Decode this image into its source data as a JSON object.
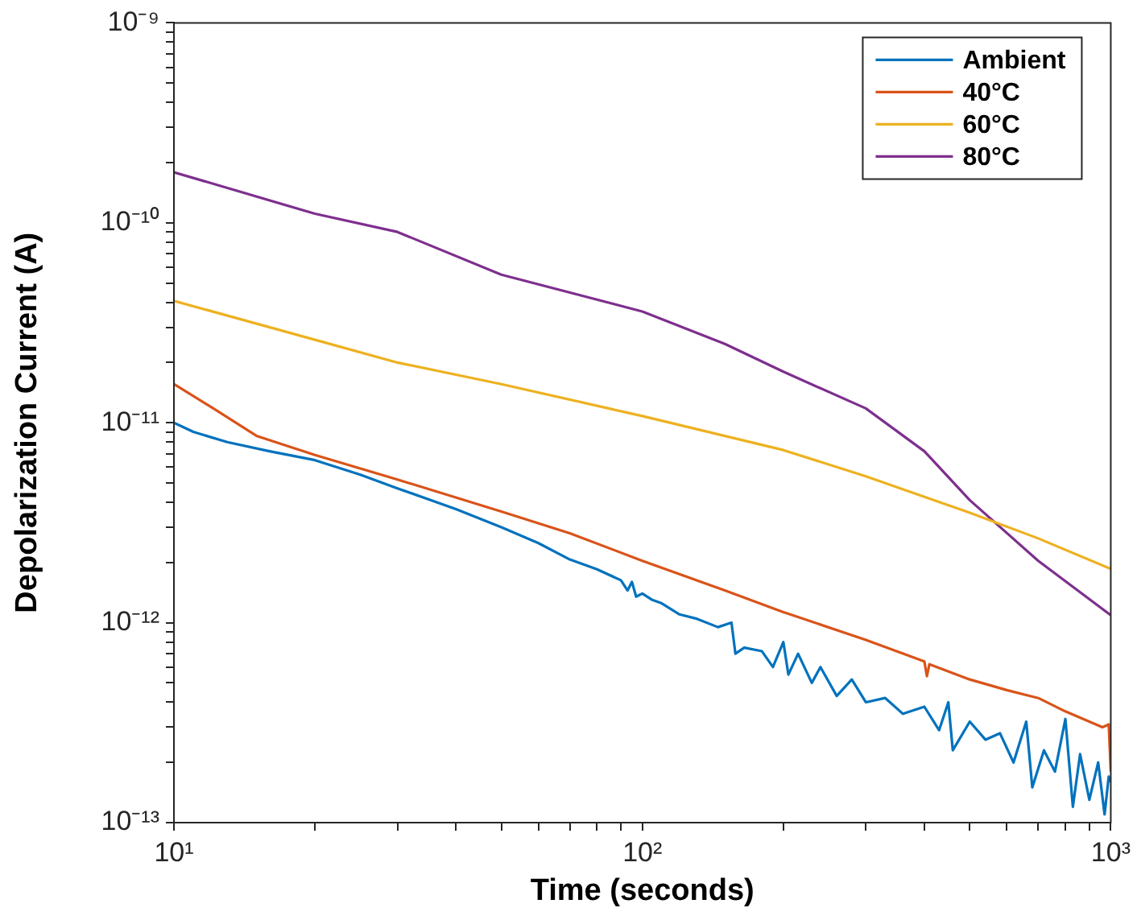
{
  "chart_data": {
    "type": "line",
    "xlabel": "Time (seconds)",
    "ylabel": "Depolarization Current (A)",
    "log": "xy",
    "grid": false,
    "legend": "top right",
    "marker": "none",
    "line_style": "solid",
    "xlim": [
      10,
      1000
    ],
    "ylim": [
      1e-13,
      1e-09
    ],
    "xticks": [
      {
        "value": 10,
        "label": "10¹"
      },
      {
        "value": 20,
        "label": null
      },
      {
        "value": 30,
        "label": null
      },
      {
        "value": 40,
        "label": null
      },
      {
        "value": 50,
        "label": null
      },
      {
        "value": 60,
        "label": null
      },
      {
        "value": 70,
        "label": null
      },
      {
        "value": 80,
        "label": null
      },
      {
        "value": 90,
        "label": null
      },
      {
        "value": 100,
        "label": "10²"
      },
      {
        "value": 200,
        "label": null
      },
      {
        "value": 300,
        "label": null
      },
      {
        "value": 400,
        "label": null
      },
      {
        "value": 500,
        "label": null
      },
      {
        "value": 600,
        "label": null
      },
      {
        "value": 700,
        "label": null
      },
      {
        "value": 800,
        "label": null
      },
      {
        "value": 900,
        "label": null
      },
      {
        "value": 1000,
        "label": "10³"
      }
    ],
    "yticks": [
      {
        "value": 1e-13,
        "label": "10⁻¹³"
      },
      {
        "value": 2e-13,
        "label": null
      },
      {
        "value": 3e-13,
        "label": null
      },
      {
        "value": 4e-13,
        "label": null
      },
      {
        "value": 5e-13,
        "label": null
      },
      {
        "value": 6e-13,
        "label": null
      },
      {
        "value": 7e-13,
        "label": null
      },
      {
        "value": 8e-13,
        "label": null
      },
      {
        "value": 9e-13,
        "label": null
      },
      {
        "value": 1e-12,
        "label": "10⁻¹²"
      },
      {
        "value": 2e-12,
        "label": null
      },
      {
        "value": 3e-12,
        "label": null
      },
      {
        "value": 4e-12,
        "label": null
      },
      {
        "value": 5e-12,
        "label": null
      },
      {
        "value": 6e-12,
        "label": null
      },
      {
        "value": 7e-12,
        "label": null
      },
      {
        "value": 8e-12,
        "label": null
      },
      {
        "value": 9e-12,
        "label": null
      },
      {
        "value": 1e-11,
        "label": "10⁻¹¹"
      },
      {
        "value": 2e-11,
        "label": null
      },
      {
        "value": 3e-11,
        "label": null
      },
      {
        "value": 4e-11,
        "label": null
      },
      {
        "value": 5e-11,
        "label": null
      },
      {
        "value": 6e-11,
        "label": null
      },
      {
        "value": 7e-11,
        "label": null
      },
      {
        "value": 8e-11,
        "label": null
      },
      {
        "value": 9e-11,
        "label": null
      },
      {
        "value": 1e-10,
        "label": "10⁻¹⁰"
      },
      {
        "value": 2e-10,
        "label": null
      },
      {
        "value": 3e-10,
        "label": null
      },
      {
        "value": 4e-10,
        "label": null
      },
      {
        "value": 5e-10,
        "label": null
      },
      {
        "value": 6e-10,
        "label": null
      },
      {
        "value": 7e-10,
        "label": null
      },
      {
        "value": 8e-10,
        "label": null
      },
      {
        "value": 9e-10,
        "label": null
      },
      {
        "value": 1e-09,
        "label": "10⁻⁹"
      }
    ],
    "series": [
      {
        "name": "Ambient",
        "color": "#0072bd",
        "x": [
          10,
          11,
          13,
          16,
          20,
          25,
          30,
          40,
          50,
          60,
          70,
          80,
          90,
          93,
          95,
          97,
          100,
          105,
          110,
          120,
          130,
          145,
          155,
          158,
          165,
          180,
          190,
          200,
          205,
          215,
          230,
          240,
          260,
          280,
          300,
          330,
          360,
          400,
          430,
          450,
          460,
          500,
          540,
          580,
          620,
          660,
          680,
          720,
          760,
          800,
          830,
          860,
          900,
          940,
          970,
          990,
          1000
        ],
        "values": [
          1e-11,
          9e-12,
          8e-12,
          7.2e-12,
          6.5e-12,
          5.5e-12,
          4.7e-12,
          3.7e-12,
          3e-12,
          2.5e-12,
          2.07e-12,
          1.85e-12,
          1.63e-12,
          1.45e-12,
          1.6e-12,
          1.35e-12,
          1.4e-12,
          1.3e-12,
          1.25e-12,
          1.1e-12,
          1.05e-12,
          9.5e-13,
          1e-12,
          7e-13,
          7.5e-13,
          7.2e-13,
          6e-13,
          8e-13,
          5.5e-13,
          7e-13,
          5e-13,
          6e-13,
          4.3e-13,
          5.2e-13,
          4e-13,
          4.2e-13,
          3.5e-13,
          3.8e-13,
          2.9e-13,
          4e-13,
          2.3e-13,
          3.2e-13,
          2.6e-13,
          2.8e-13,
          2e-13,
          3.2e-13,
          1.5e-13,
          2.3e-13,
          1.8e-13,
          3.3e-13,
          1.2e-13,
          2.2e-13,
          1.3e-13,
          2e-13,
          1.1e-13,
          1.7e-13,
          1.6e-13
        ]
      },
      {
        "name": "40°C",
        "color": "#d95319",
        "x": [
          10,
          12,
          15,
          20,
          30,
          50,
          70,
          100,
          150,
          200,
          300,
          400,
          405,
          410,
          500,
          600,
          700,
          800,
          900,
          960,
          990,
          1000
        ],
        "values": [
          1.56e-11,
          1.2e-11,
          8.6e-12,
          6.9e-12,
          5.2e-12,
          3.6e-12,
          2.8e-12,
          2.04e-12,
          1.45e-12,
          1.13e-12,
          8.2e-13,
          6.4e-13,
          5.4e-13,
          6.2e-13,
          5.2e-13,
          4.6e-13,
          4.2e-13,
          3.6e-13,
          3.2e-13,
          3e-13,
          3.1e-13,
          1.8e-13
        ]
      },
      {
        "name": "60°C",
        "color": "#edb120",
        "x": [
          10,
          20,
          30,
          50,
          100,
          200,
          300,
          500,
          700,
          1000
        ],
        "values": [
          4.07e-11,
          2.6e-11,
          2e-11,
          1.56e-11,
          1.08e-11,
          7.3e-12,
          5.4e-12,
          3.55e-12,
          2.64e-12,
          1.86e-12
        ]
      },
      {
        "name": "80°C",
        "color": "#7e2f8e",
        "x": [
          10,
          20,
          30,
          50,
          100,
          150,
          200,
          300,
          400,
          500,
          700,
          1000
        ],
        "values": [
          1.79e-10,
          1.11e-10,
          9e-11,
          5.5e-11,
          3.6e-11,
          2.48e-11,
          1.8e-11,
          1.18e-11,
          7.2e-12,
          4.1e-12,
          2.04e-12,
          1.09e-12
        ]
      }
    ]
  }
}
